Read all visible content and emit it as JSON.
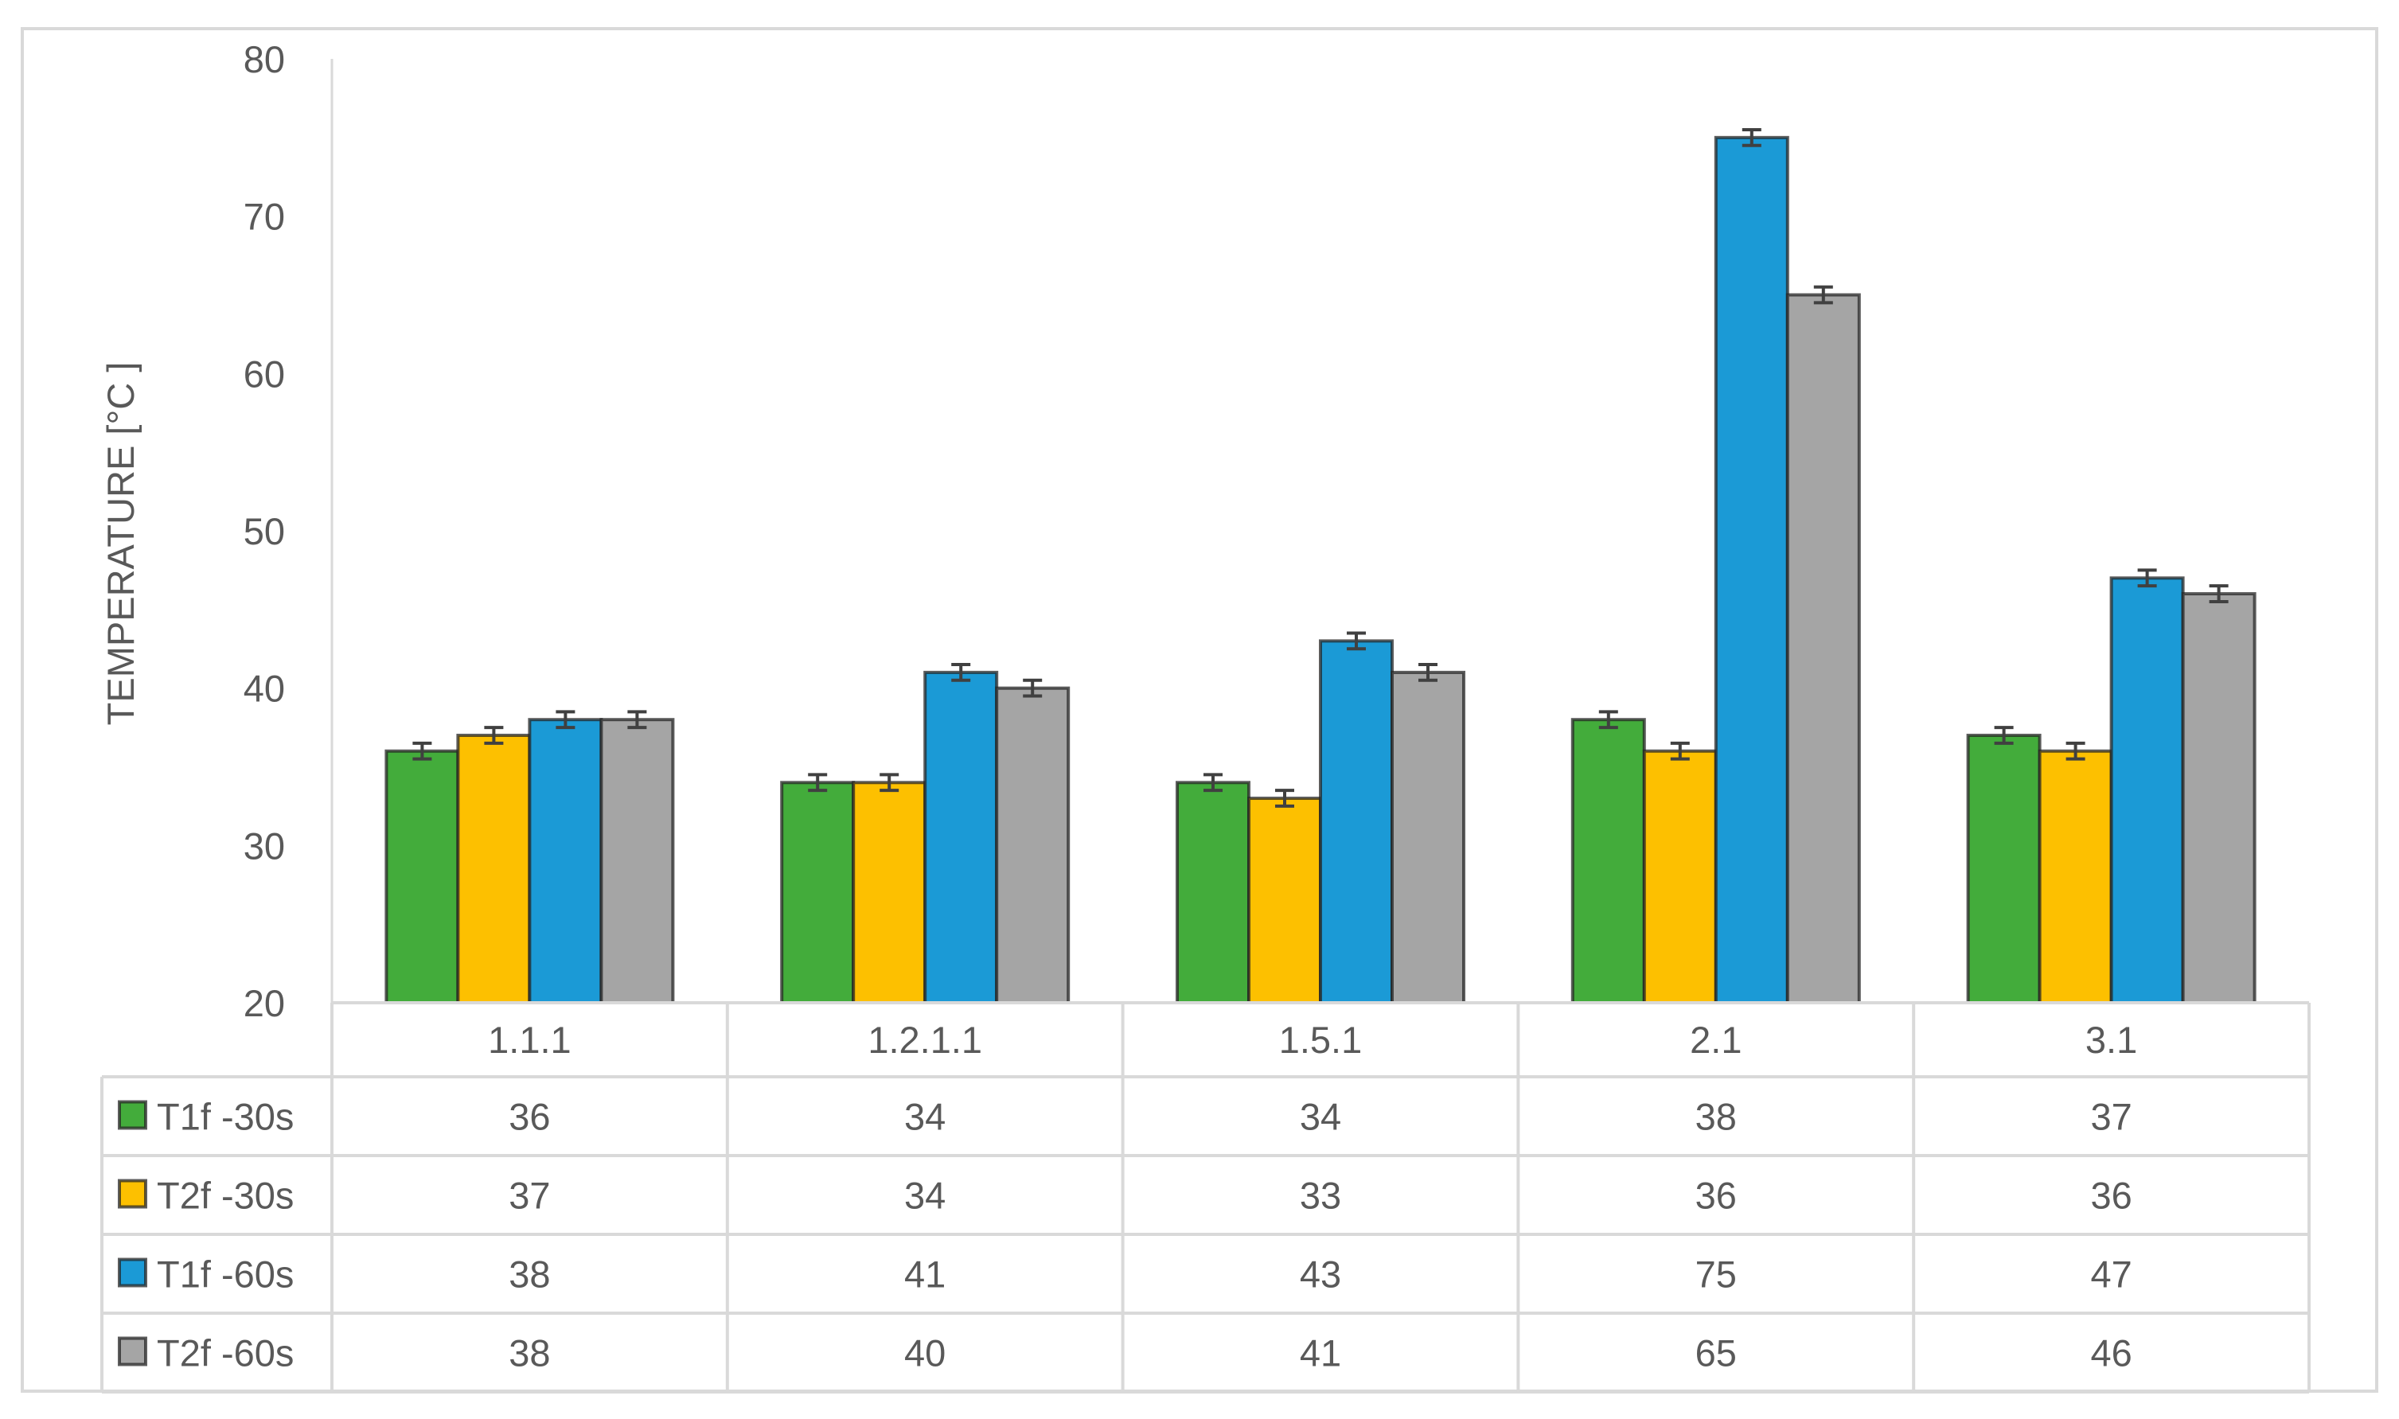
{
  "chart_data": {
    "type": "bar",
    "ylabel": "TEMPERATURE [°C ]",
    "ylim": [
      20,
      80
    ],
    "yticks": [
      "20",
      "30",
      "40",
      "50",
      "60",
      "70",
      "80"
    ],
    "ytick_values": [
      20,
      30,
      40,
      50,
      60,
      70,
      80
    ],
    "categories": [
      "1.1.1",
      "1.2.1.1",
      "1.5.1",
      "2.1",
      "3.1"
    ],
    "error_bar": 0.5,
    "series": [
      {
        "name": "T1f -30s",
        "color": "#43ac3b",
        "values": [
          36,
          34,
          34,
          38,
          37
        ]
      },
      {
        "name": "T2f -30s",
        "color": "#fdc000",
        "values": [
          37,
          34,
          33,
          36,
          36
        ]
      },
      {
        "name": "T1f -60s",
        "color": "#1b9ad6",
        "values": [
          38,
          41,
          43,
          75,
          47
        ]
      },
      {
        "name": "T2f -60s",
        "color": "#a5a5a5",
        "values": [
          38,
          40,
          41,
          65,
          46
        ]
      }
    ],
    "data_table": true,
    "grid": false
  }
}
